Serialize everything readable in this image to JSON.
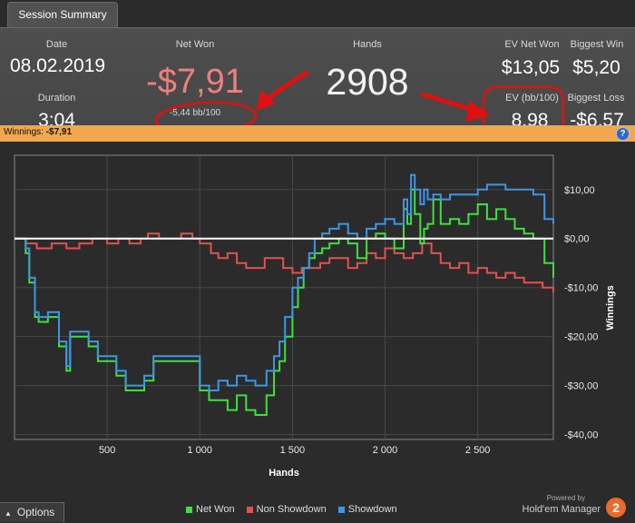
{
  "tab": {
    "label": "Session Summary"
  },
  "summary": {
    "date_label": "Date",
    "date": "08.02.2019",
    "duration_label": "Duration",
    "duration": "3:04",
    "net_won_label": "Net Won",
    "net_won": "-$7,91",
    "bb100": "-5,44 bb/100",
    "hands_label": "Hands",
    "hands": "2908",
    "ev_net_won_label": "EV Net Won",
    "ev_net_won": "$13,05",
    "ev_bb100_label": "EV (bb/100)",
    "ev_bb100": "8,98",
    "biggest_win_label": "Biggest Win",
    "biggest_win": "$5,20",
    "biggest_loss_label": "Biggest Loss",
    "biggest_loss": "-$6,57"
  },
  "winnings_bar": {
    "label": "Winnings:",
    "value": "-$7,91",
    "help": "?"
  },
  "options": {
    "label": "Options"
  },
  "branding": {
    "powered_by": "Powered by",
    "name": "Hold'em Manager",
    "logo_text": "2"
  },
  "colors": {
    "net_won": "#3ee03e",
    "non_showdown": "#e55050",
    "showdown": "#3d96e6",
    "negative": "#ee7f7f",
    "accent_bar": "#f0a74e"
  },
  "chart_data": {
    "type": "line",
    "xlabel": "Hands",
    "ylabel": "Winnings",
    "xlim": [
      0,
      2908
    ],
    "ylim": [
      -41,
      17
    ],
    "xticks": [
      500,
      1000,
      1500,
      2000,
      2500
    ],
    "xtick_labels": [
      "500",
      "1 000",
      "1 500",
      "2 000",
      "2 500"
    ],
    "yticks": [
      10,
      0,
      -10,
      -20,
      -30,
      -40
    ],
    "ytick_labels": [
      "$10,00",
      "$0,00",
      "-$10,00",
      "-$20,00",
      "-$30,00",
      "-$40,00"
    ],
    "zero_line": true,
    "grid": true,
    "legend_position": "bottom",
    "series": [
      {
        "name": "Net Won",
        "color": "#3ee03e",
        "x": [
          0,
          60,
          80,
          110,
          130,
          180,
          240,
          280,
          300,
          340,
          400,
          450,
          500,
          550,
          600,
          650,
          700,
          750,
          820,
          900,
          940,
          1000,
          1050,
          1100,
          1150,
          1200,
          1250,
          1300,
          1360,
          1400,
          1430,
          1460,
          1500,
          1530,
          1560,
          1590,
          1620,
          1660,
          1700,
          1750,
          1800,
          1850,
          1900,
          1950,
          2000,
          2050,
          2100,
          2120,
          2140,
          2160,
          2190,
          2210,
          2230,
          2260,
          2300,
          2350,
          2400,
          2450,
          2500,
          2550,
          2600,
          2650,
          2700,
          2750,
          2800,
          2860,
          2908
        ],
        "y": [
          0,
          -3,
          -9,
          -16,
          -17,
          -16,
          -22,
          -27,
          -20,
          -20,
          -22,
          -25,
          -25,
          -28,
          -31,
          -31,
          -29,
          -25,
          -25,
          -25,
          -25,
          -31,
          -33,
          -33,
          -35,
          -32,
          -35,
          -36,
          -32,
          -27,
          -25,
          -20,
          -14,
          -10,
          -6,
          -4,
          -3,
          -2,
          -1,
          0,
          -1,
          -4,
          0,
          1,
          0,
          -2,
          6,
          3,
          10,
          5,
          -1,
          2,
          3,
          8,
          3,
          4,
          3,
          5,
          7,
          4,
          6,
          4,
          2,
          1,
          0,
          -5,
          -8
        ]
      },
      {
        "name": "Non Showdown",
        "color": "#e55050",
        "x": [
          0,
          60,
          120,
          200,
          280,
          350,
          420,
          500,
          560,
          620,
          680,
          720,
          780,
          840,
          900,
          960,
          1000,
          1060,
          1100,
          1150,
          1200,
          1250,
          1300,
          1350,
          1400,
          1450,
          1500,
          1550,
          1600,
          1650,
          1700,
          1750,
          1800,
          1850,
          1900,
          1950,
          2000,
          2050,
          2100,
          2150,
          2200,
          2250,
          2300,
          2350,
          2400,
          2450,
          2500,
          2550,
          2600,
          2650,
          2700,
          2750,
          2800,
          2850,
          2908
        ],
        "y": [
          0,
          -1,
          -2,
          -1,
          -2,
          -1,
          0,
          -1,
          0,
          -1,
          0,
          1,
          0,
          0,
          1,
          0,
          -1,
          -3,
          -4,
          -3,
          -5,
          -6,
          -6,
          -4,
          -4,
          -6,
          -7,
          -6,
          -6,
          -5,
          -4,
          -4,
          -6,
          -5,
          -3,
          -4,
          -2,
          -3,
          -4,
          -3,
          -1,
          -3,
          -5,
          -6,
          -5,
          -7,
          -6,
          -7,
          -8,
          -7,
          -8,
          -9,
          -9,
          -10,
          -11
        ]
      },
      {
        "name": "Showdown",
        "color": "#3d96e6",
        "x": [
          0,
          60,
          80,
          110,
          130,
          180,
          240,
          280,
          300,
          340,
          400,
          450,
          500,
          550,
          600,
          650,
          700,
          750,
          820,
          900,
          940,
          1000,
          1050,
          1100,
          1150,
          1200,
          1250,
          1300,
          1360,
          1400,
          1430,
          1460,
          1500,
          1530,
          1560,
          1590,
          1620,
          1660,
          1700,
          1750,
          1800,
          1850,
          1900,
          1950,
          2000,
          2050,
          2100,
          2120,
          2140,
          2160,
          2190,
          2210,
          2230,
          2260,
          2300,
          2350,
          2400,
          2450,
          2500,
          2550,
          2600,
          2650,
          2700,
          2750,
          2800,
          2860,
          2908
        ],
        "y": [
          0,
          -2,
          -8,
          -15,
          -16,
          -15,
          -21,
          -26,
          -19,
          -19,
          -21,
          -24,
          -24,
          -27,
          -30,
          -30,
          -28,
          -24,
          -24,
          -24,
          -24,
          -30,
          -31,
          -29,
          -30,
          -28,
          -29,
          -30,
          -27,
          -24,
          -21,
          -16,
          -10,
          -8,
          -6,
          -3,
          0,
          1,
          2,
          3,
          1,
          0,
          2,
          3,
          4,
          3,
          8,
          5,
          13,
          10,
          7,
          10,
          8,
          9,
          8,
          9,
          9,
          9,
          10,
          11,
          11,
          10,
          10,
          10,
          9,
          4,
          3
        ]
      }
    ]
  }
}
